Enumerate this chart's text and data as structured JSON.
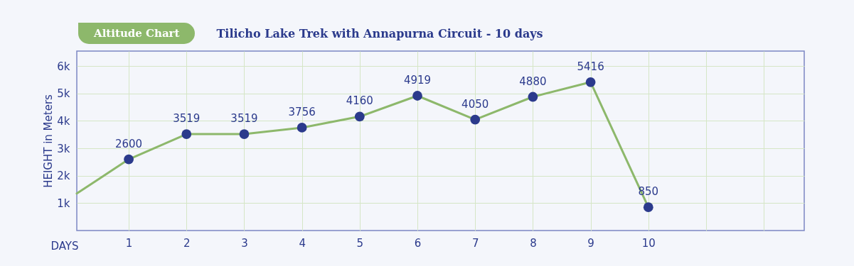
{
  "chart_data": {
    "type": "line",
    "title": "Tilicho Lake Trek with Annapurna Circuit - 10 days",
    "subtitle": "Altitude Chart",
    "xlabel": "DAYS",
    "ylabel": "HEIGHT in Meters",
    "series": [
      {
        "color": "#8db86b",
        "x": [
          0.1,
          1
        ],
        "values": [
          1350,
          2600
        ]
      },
      {
        "color": "#8db86b",
        "marker": "circle",
        "x": [
          1,
          2,
          3,
          4,
          5,
          6,
          7,
          8,
          9,
          10
        ],
        "values": [
          2600,
          3519,
          3519,
          3756,
          4160,
          4919,
          4050,
          4880,
          5416,
          850
        ],
        "data_labels": true
      }
    ],
    "xlim": [
      0.1,
      12.7
    ],
    "xticks": [
      1,
      2,
      3,
      4,
      5,
      6,
      7,
      8,
      9,
      10,
      {
        "value": 11,
        "label": null
      },
      {
        "value": 12,
        "label": null
      }
    ],
    "ylim": [
      0,
      6550
    ],
    "yticks": [
      {
        "value": 1000,
        "label": "1k"
      },
      {
        "value": 2000,
        "label": "2k"
      },
      {
        "value": 3000,
        "label": "3k"
      },
      {
        "value": 4000,
        "label": "4k"
      },
      {
        "value": 5000,
        "label": "5k"
      },
      {
        "value": 6000,
        "label": "6k"
      }
    ],
    "grid": true
  }
}
